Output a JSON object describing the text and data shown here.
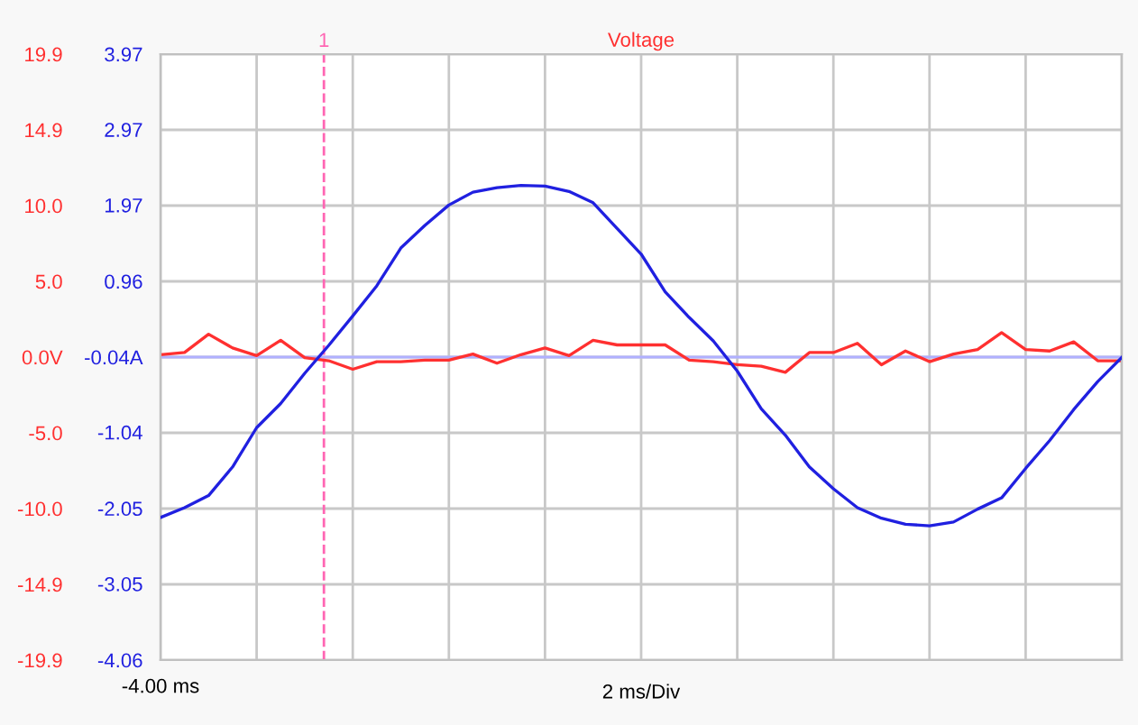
{
  "chart_data": {
    "type": "line",
    "title": "Voltage",
    "xlabel": "2 ms/Div",
    "annotations": [
      "1",
      "-4.00 ms"
    ],
    "categories": [
      null,
      null,
      null,
      null,
      null,
      null,
      null,
      null,
      null,
      null,
      null,
      null,
      null,
      null,
      null,
      null,
      null,
      null,
      null,
      null,
      null,
      null,
      null,
      null,
      null,
      null,
      null,
      null,
      null,
      null,
      null,
      null,
      null,
      null,
      null,
      null,
      null,
      null,
      null,
      null,
      null
    ],
    "ylim": [
      -19.9,
      19.9
    ],
    "yticks": [
      {
        "value": -19.9,
        "label": "-19.9"
      },
      {
        "value": -14.925,
        "label": "-14.9"
      },
      {
        "value": -9.95,
        "label": "-10.0"
      },
      {
        "value": -4.975,
        "label": "-5.0"
      },
      {
        "value": 0,
        "label": "0.0V"
      },
      {
        "value": 4.975,
        "label": "5.0"
      },
      {
        "value": 9.95,
        "label": "10.0"
      },
      {
        "value": 14.925,
        "label": "14.9"
      },
      {
        "value": 19.9,
        "label": "19.9"
      }
    ],
    "y2lim": [
      -4.06,
      3.97
    ],
    "y2ticks": [
      {
        "value": -4.06,
        "label": "-4.06"
      },
      {
        "value": -3.05,
        "label": "-3.05"
      },
      {
        "value": -2.05,
        "label": "-2.05"
      },
      {
        "value": -1.04,
        "label": "-1.04"
      },
      {
        "value": -0.045,
        "label": "-0.04A"
      },
      {
        "value": 0.96,
        "label": "0.96"
      },
      {
        "value": 1.97,
        "label": "1.97"
      },
      {
        "value": 2.97,
        "label": "2.97"
      },
      {
        "value": 3.97,
        "label": "3.97"
      }
    ],
    "grid": true,
    "legend": false,
    "marker": "none",
    "line_style": "solid",
    "ref_lines": [
      {
        "axis": "y",
        "value": 0,
        "label": null,
        "color": "#b0b0ff",
        "line_style": "solid"
      }
    ],
    "series": [
      {
        "color": "#2020e0",
        "axis": "y2",
        "values": [
          -2.17,
          -2.04,
          -1.88,
          -1.5,
          -0.98,
          -0.66,
          -0.26,
          0.11,
          0.5,
          0.9,
          1.4,
          1.7,
          1.97,
          2.14,
          2.2,
          2.23,
          2.22,
          2.15,
          2.0,
          1.66,
          1.32,
          0.82,
          0.48,
          0.17,
          -0.23,
          -0.73,
          -1.08,
          -1.5,
          -1.79,
          -2.04,
          -2.18,
          -2.26,
          -2.28,
          -2.23,
          -2.06,
          -1.91,
          -1.52,
          -1.15,
          -0.74,
          -0.37,
          -0.05
        ]
      },
      {
        "color": "#ff3030",
        "values": [
          0.16,
          0.3,
          1.5,
          0.6,
          0.1,
          1.1,
          -0.04,
          -0.24,
          -0.8,
          -0.3,
          -0.3,
          -0.2,
          -0.2,
          0.2,
          -0.4,
          0.16,
          0.6,
          0.1,
          1.1,
          0.8,
          0.8,
          0.8,
          -0.2,
          -0.3,
          -0.5,
          -0.6,
          -1.0,
          0.3,
          0.3,
          0.9,
          -0.5,
          0.4,
          -0.3,
          0.2,
          0.5,
          1.6,
          0.5,
          0.4,
          1.0,
          -0.24,
          -0.24
        ]
      }
    ]
  }
}
